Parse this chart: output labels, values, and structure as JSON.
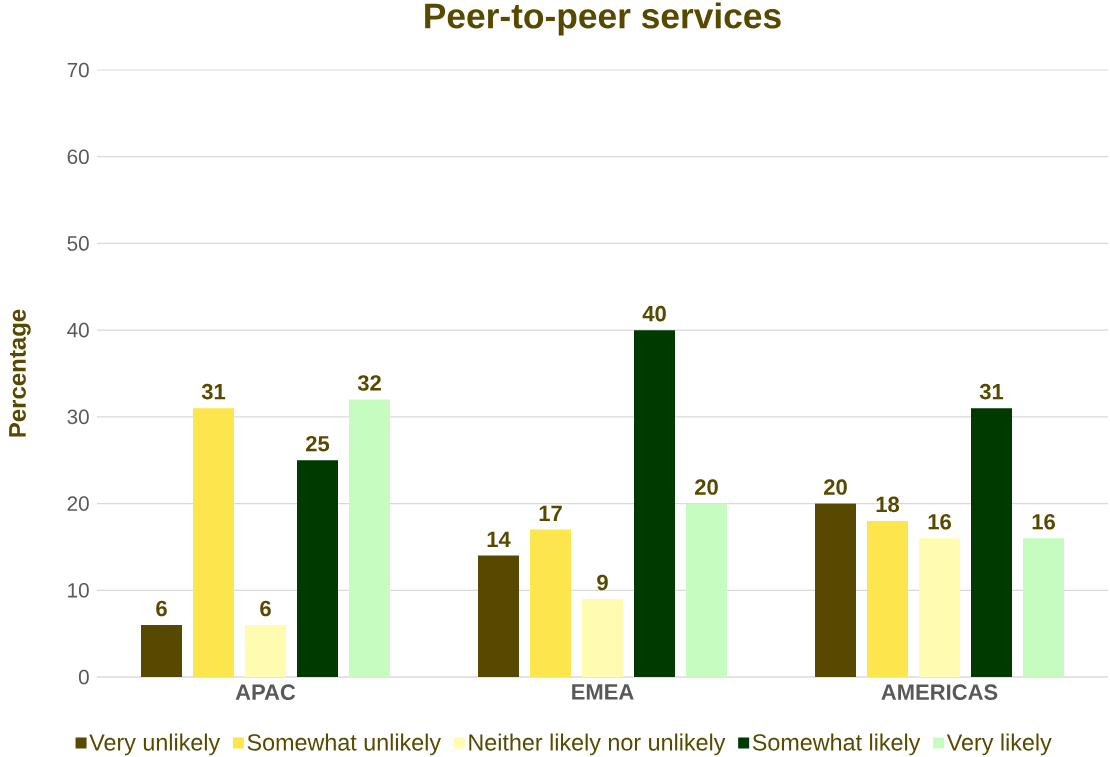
{
  "chart_data": {
    "type": "bar",
    "title": "Peer-to-peer services",
    "ylabel": "Percentage",
    "categories": [
      "APAC",
      "EMEA",
      "AMERICAS"
    ],
    "series": [
      {
        "name": "Very unlikely",
        "color": "#574a00",
        "values": [
          6,
          14,
          20
        ]
      },
      {
        "name": "Somewhat unlikely",
        "color": "#fce54d",
        "values": [
          31,
          17,
          18
        ]
      },
      {
        "name": "Neither likely nor unlikely",
        "color": "#fffbb0",
        "values": [
          6,
          9,
          16
        ]
      },
      {
        "name": "Somewhat likely",
        "color": "#003a00",
        "values": [
          25,
          40,
          31
        ]
      },
      {
        "name": "Very likely",
        "color": "#c6fcc0",
        "values": [
          32,
          20,
          16
        ]
      }
    ],
    "ylim": [
      0,
      70
    ],
    "yticks": [
      0,
      10,
      20,
      30,
      40,
      50,
      60,
      70
    ],
    "grid": "y",
    "legend": "bottom",
    "data_labels": true
  }
}
